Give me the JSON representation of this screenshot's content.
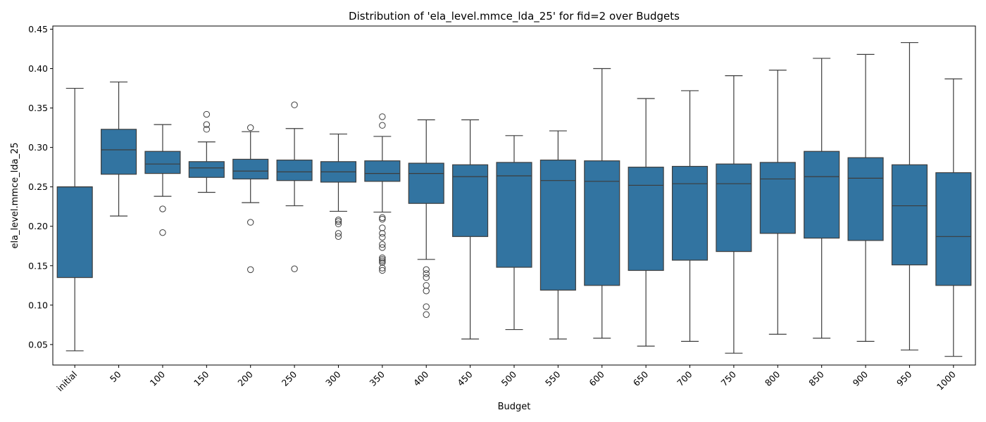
{
  "chart_data": {
    "type": "box",
    "title": "Distribution of 'ela_level.mmce_lda_25' for fid=2 over Budgets",
    "xlabel": "Budget",
    "ylabel": "ela_level.mmce_lda_25",
    "ylim": [
      0.024,
      0.454
    ],
    "yticks": [
      "0.05",
      "0.10",
      "0.15",
      "0.20",
      "0.25",
      "0.30",
      "0.35",
      "0.40",
      "0.45"
    ],
    "yticks_values": [
      0.05,
      0.1,
      0.15,
      0.2,
      0.25,
      0.3,
      0.35,
      0.4,
      0.45
    ],
    "box_color": "#3274a1",
    "line_color": "#3d3d3d",
    "grid": false,
    "categories": [
      "initial",
      "50",
      "100",
      "150",
      "200",
      "250",
      "300",
      "350",
      "400",
      "450",
      "500",
      "550",
      "600",
      "650",
      "700",
      "750",
      "800",
      "850",
      "900",
      "950",
      "1000"
    ],
    "boxes": [
      {
        "category": "initial",
        "whislo": 0.042,
        "q1": 0.135,
        "med": 0.25,
        "q3": 0.25,
        "whishi": 0.375,
        "fliers": []
      },
      {
        "category": "50",
        "whislo": 0.213,
        "q1": 0.266,
        "med": 0.297,
        "q3": 0.323,
        "whishi": 0.383,
        "fliers": []
      },
      {
        "category": "100",
        "whislo": 0.238,
        "q1": 0.267,
        "med": 0.279,
        "q3": 0.295,
        "whishi": 0.329,
        "fliers": [
          0.222,
          0.192
        ]
      },
      {
        "category": "150",
        "whislo": 0.243,
        "q1": 0.262,
        "med": 0.274,
        "q3": 0.282,
        "whishi": 0.307,
        "fliers": [
          0.342,
          0.329,
          0.323
        ]
      },
      {
        "category": "200",
        "whislo": 0.23,
        "q1": 0.26,
        "med": 0.27,
        "q3": 0.285,
        "whishi": 0.32,
        "fliers": [
          0.325,
          0.205,
          0.145
        ]
      },
      {
        "category": "250",
        "whislo": 0.226,
        "q1": 0.258,
        "med": 0.269,
        "q3": 0.284,
        "whishi": 0.324,
        "fliers": [
          0.354,
          0.146
        ]
      },
      {
        "category": "300",
        "whislo": 0.219,
        "q1": 0.256,
        "med": 0.269,
        "q3": 0.282,
        "whishi": 0.317,
        "fliers": [
          0.208,
          0.206,
          0.203,
          0.191,
          0.187
        ]
      },
      {
        "category": "350",
        "whislo": 0.218,
        "q1": 0.257,
        "med": 0.267,
        "q3": 0.283,
        "whishi": 0.314,
        "fliers": [
          0.339,
          0.328,
          0.211,
          0.209,
          0.198,
          0.191,
          0.186,
          0.177,
          0.173,
          0.16,
          0.158,
          0.156,
          0.154,
          0.147,
          0.144
        ]
      },
      {
        "category": "400",
        "whislo": 0.158,
        "q1": 0.229,
        "med": 0.267,
        "q3": 0.28,
        "whishi": 0.335,
        "fliers": [
          0.145,
          0.14,
          0.135,
          0.125,
          0.118,
          0.098,
          0.088
        ]
      },
      {
        "category": "450",
        "whislo": 0.057,
        "q1": 0.187,
        "med": 0.263,
        "q3": 0.278,
        "whishi": 0.335,
        "fliers": []
      },
      {
        "category": "500",
        "whislo": 0.069,
        "q1": 0.148,
        "med": 0.264,
        "q3": 0.281,
        "whishi": 0.315,
        "fliers": []
      },
      {
        "category": "550",
        "whislo": 0.057,
        "q1": 0.119,
        "med": 0.258,
        "q3": 0.284,
        "whishi": 0.321,
        "fliers": []
      },
      {
        "category": "600",
        "whislo": 0.058,
        "q1": 0.125,
        "med": 0.257,
        "q3": 0.283,
        "whishi": 0.4,
        "fliers": []
      },
      {
        "category": "650",
        "whislo": 0.048,
        "q1": 0.144,
        "med": 0.252,
        "q3": 0.275,
        "whishi": 0.362,
        "fliers": []
      },
      {
        "category": "700",
        "whislo": 0.054,
        "q1": 0.157,
        "med": 0.254,
        "q3": 0.276,
        "whishi": 0.372,
        "fliers": []
      },
      {
        "category": "750",
        "whislo": 0.039,
        "q1": 0.168,
        "med": 0.254,
        "q3": 0.279,
        "whishi": 0.391,
        "fliers": []
      },
      {
        "category": "800",
        "whislo": 0.063,
        "q1": 0.191,
        "med": 0.26,
        "q3": 0.281,
        "whishi": 0.398,
        "fliers": []
      },
      {
        "category": "850",
        "whislo": 0.058,
        "q1": 0.185,
        "med": 0.263,
        "q3": 0.295,
        "whishi": 0.413,
        "fliers": []
      },
      {
        "category": "900",
        "whislo": 0.054,
        "q1": 0.182,
        "med": 0.261,
        "q3": 0.287,
        "whishi": 0.418,
        "fliers": []
      },
      {
        "category": "950",
        "whislo": 0.043,
        "q1": 0.151,
        "med": 0.226,
        "q3": 0.278,
        "whishi": 0.433,
        "fliers": []
      },
      {
        "category": "1000",
        "whislo": 0.035,
        "q1": 0.125,
        "med": 0.187,
        "q3": 0.268,
        "whishi": 0.387,
        "fliers": []
      }
    ]
  }
}
